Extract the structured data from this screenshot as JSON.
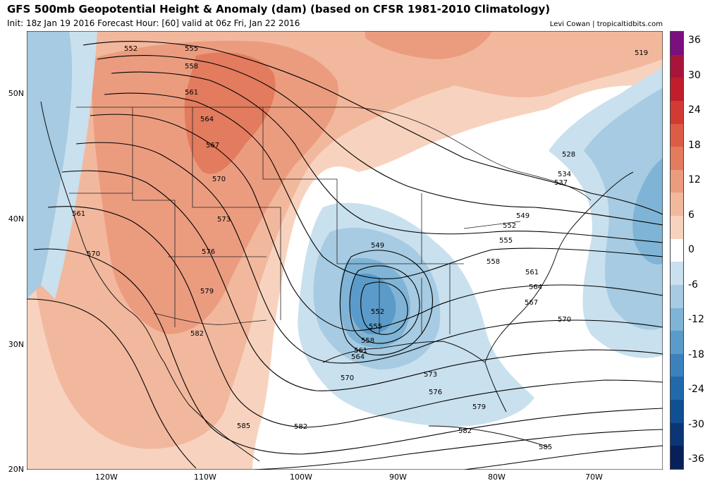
{
  "header": {
    "title": "GFS 500mb Geopotential Height & Anomaly (dam) (based on CFSR 1981-2010 Climatology)",
    "subtitle": "Init: 18z Jan 19 2016   Forecast Hour: [60]   valid at 06z Fri, Jan 22 2016",
    "credit": "Levi Cowan | tropicaltidbits.com"
  },
  "axes": {
    "lat_labels": [
      "50N",
      "40N",
      "30N",
      "20N"
    ],
    "lon_labels": [
      "120W",
      "110W",
      "100W",
      "90W",
      "80W",
      "70W"
    ]
  },
  "colorbar": {
    "labels": [
      "36",
      "30",
      "24",
      "18",
      "12",
      "6",
      "0",
      "-6",
      "-12",
      "-18",
      "-24",
      "-30",
      "-36"
    ],
    "colors": [
      "#7b0f7e",
      "#a8153a",
      "#c11d2b",
      "#d13b34",
      "#dd5c45",
      "#e37b5e",
      "#eb9c7f",
      "#f2b89d",
      "#f7d3bf",
      "#ffffff",
      "#c9e0ee",
      "#a6cbe2",
      "#7fb4d6",
      "#5b9bc9",
      "#3b82bd",
      "#2169aa",
      "#0f4f92",
      "#0a3675",
      "#08205a"
    ]
  },
  "contours": {
    "labels": [
      "552",
      "555",
      "558",
      "561",
      "564",
      "567",
      "570",
      "573",
      "576",
      "579",
      "582",
      "585",
      "519",
      "528",
      "534",
      "537",
      "549",
      "552",
      "555",
      "558",
      "561",
      "564",
      "567",
      "570",
      "561",
      "570",
      "549",
      "552",
      "555",
      "558",
      "561",
      "564",
      "570",
      "573",
      "576",
      "579",
      "582",
      "585",
      "582"
    ]
  },
  "icons": [
    "colorbar",
    "map-background"
  ]
}
